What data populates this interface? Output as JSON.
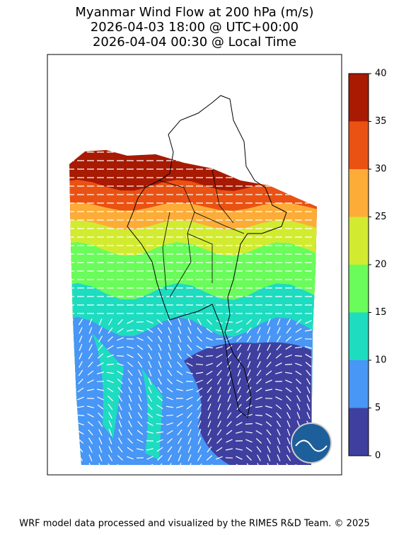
{
  "header": {
    "title_lines": [
      "Myanmar Wind Flow at 200 hPa (m/s)",
      "2026-04-03 18:00 @ UTC+00:00",
      "2026-04-04 00:30 @ Local Time"
    ]
  },
  "colorbar": {
    "lim": [
      0,
      40
    ],
    "ticks": [
      0,
      5,
      10,
      15,
      20,
      25,
      30,
      35,
      40
    ],
    "colors": [
      "#3f3fa0",
      "#4896f5",
      "#1ddcc0",
      "#6afc5a",
      "#d2eb30",
      "#fdac38",
      "#ea5213",
      "#a81a02"
    ]
  },
  "footer": "WRF model data processed and visualized by the RIMES R&D Team. © 2025"
}
